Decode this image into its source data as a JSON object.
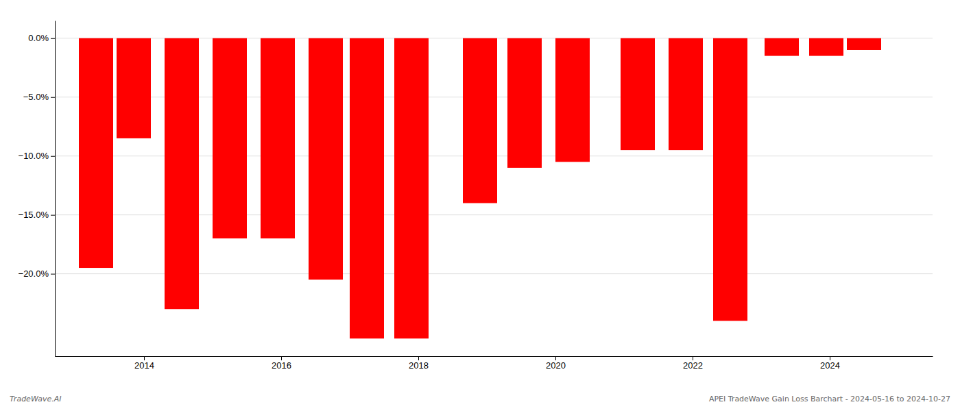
{
  "chart_data": {
    "type": "bar",
    "x": [
      2013.3,
      2013.85,
      2014.55,
      2015.25,
      2015.95,
      2016.65,
      2017.25,
      2017.9,
      2018.9,
      2019.55,
      2020.25,
      2021.2,
      2021.9,
      2022.55,
      2023.3,
      2023.95,
      2024.5
    ],
    "values": [
      -19.5,
      -8.5,
      -23.0,
      -17.0,
      -17.0,
      -20.5,
      -25.5,
      -25.5,
      -14.0,
      -11.0,
      -10.5,
      -9.5,
      -9.5,
      -24.0,
      -1.5,
      -1.5,
      -1.0
    ],
    "color": "#ff0000",
    "xlim": [
      2012.7,
      2025.5
    ],
    "xticks": [
      2014,
      2016,
      2018,
      2020,
      2022,
      2024
    ],
    "ylim": [
      -27,
      1.5
    ],
    "yticks": [
      {
        "value": 0.0,
        "label": "0.0%"
      },
      {
        "value": -5.0,
        "label": "−5.0%"
      },
      {
        "value": -10.0,
        "label": "−10.0%"
      },
      {
        "value": -15.0,
        "label": "−15.0%"
      },
      {
        "value": -20.0,
        "label": "−20.0%"
      }
    ],
    "grid": true,
    "annotations": [
      "TradeWave.AI",
      "APEI TradeWave Gain Loss Barchart - 2024-05-16 to 2024-10-27"
    ]
  }
}
